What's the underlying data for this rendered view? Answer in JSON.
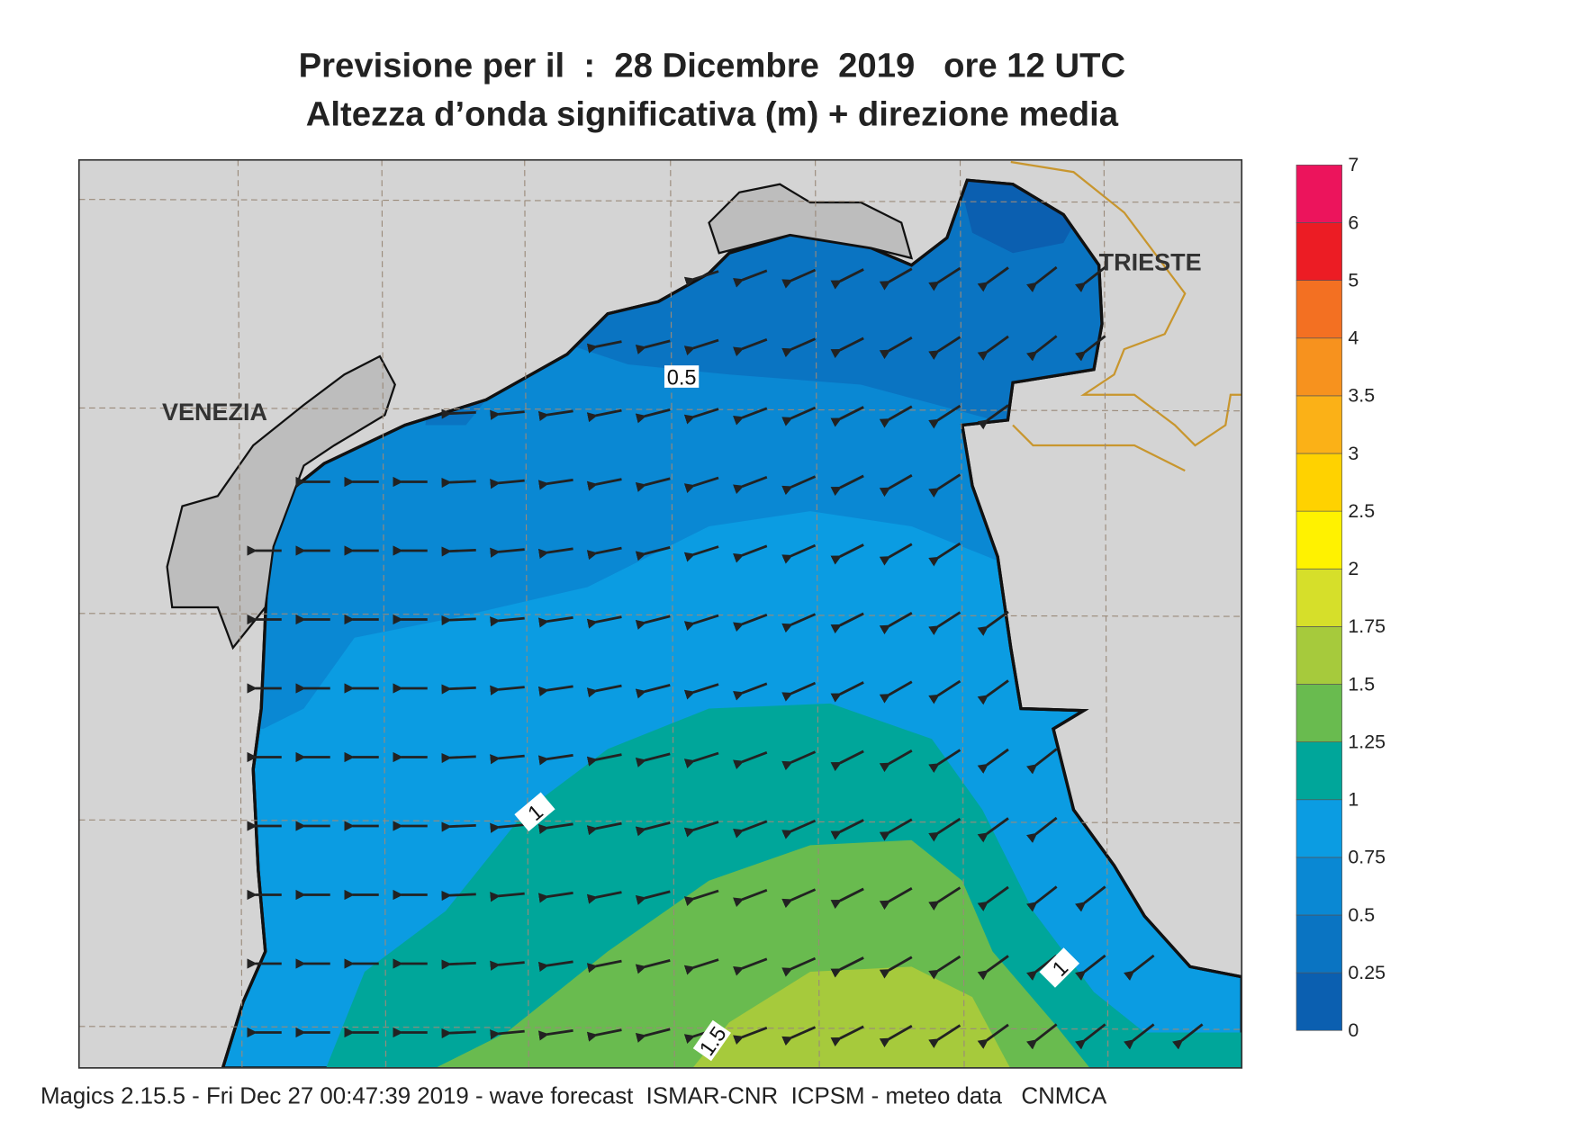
{
  "title": [
    "Previsione per il  :  28 Dicembre  2019   ore 12 UTC",
    "Altezza d’onda significativa (m) + direzione media"
  ],
  "map": {
    "places": [
      "VENEZIA",
      "TRIESTE"
    ],
    "contour_labels": [
      "0.5",
      "1",
      "1.5",
      "1"
    ]
  },
  "colorbar": {
    "ticks": [
      0,
      0.25,
      0.5,
      0.75,
      1,
      1.25,
      1.5,
      1.75,
      2,
      2.5,
      3,
      3.5,
      4,
      5,
      6,
      7
    ],
    "colors": [
      "#0b5fb0",
      "#0a74c2",
      "#0a88d3",
      "#0b9ce2",
      "#00a69a",
      "#69bb4f",
      "#a6ca3c",
      "#d6df2a",
      "#fff200",
      "#ffd200",
      "#fbb117",
      "#f7921e",
      "#f37022",
      "#ec1c24",
      "#ec145c"
    ]
  },
  "footer": "Magics 2.15.5 - Fri Dec 27 00:47:39 2019 - wave forecast  ISMAR-CNR  ICPSM - meteo data   CNMCA"
}
